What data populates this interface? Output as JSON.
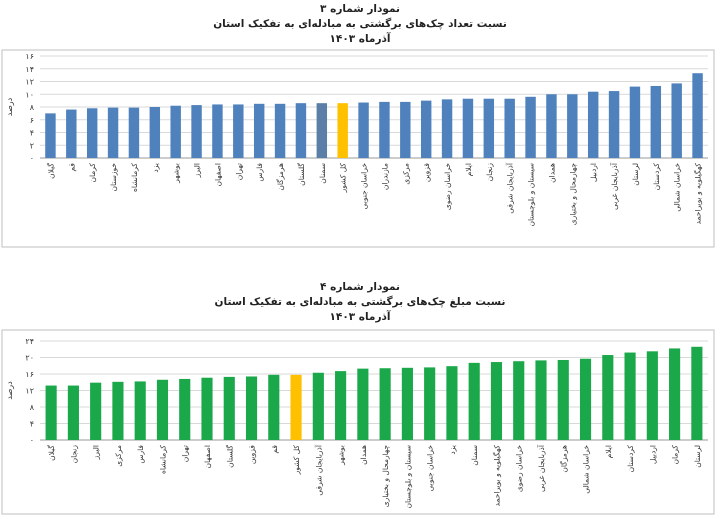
{
  "chart_data": [
    {
      "type": "bar",
      "title": "نمودار شماره ۳",
      "subtitle": "نسبت تعداد چک‌های برگشتی به مبادله‌ای به تفکیک استان",
      "period": "آذرماه ۱۴۰۳",
      "ylabel": "درصد",
      "xlabel": "",
      "ylim": [
        0,
        16
      ],
      "yticks": [
        0,
        2,
        4,
        6,
        8,
        10,
        12,
        14,
        16
      ],
      "ytick_labels": [
        "۰",
        "۲",
        "۴",
        "۶",
        "۸",
        "۱۰",
        "۱۲",
        "۱۴",
        "۱۶"
      ],
      "grid": true,
      "legend": "none",
      "colors": {
        "default": "#4F81BD",
        "national": "#FFC000",
        "highlight": "#5B7FA6"
      },
      "categories": [
        "گیلان",
        "قم",
        "کرمان",
        "خوزستان",
        "کرمانشاه",
        "یزد",
        "بوشهر",
        "البرز",
        "اصفهان",
        "تهران",
        "فارس",
        "هرمزگان",
        "گلستان",
        "سمنان",
        "کل کشور",
        "خراسان جنوبی",
        "مازندران",
        "مرکزی",
        "قزوین",
        "خراسان رضوی",
        "ایلام",
        "زنجان",
        "آذربایجان شرقی",
        "سیستان و بلوچستان",
        "همدان",
        "چهارمحال و بختیاری",
        "اردبیل",
        "آذربایجان غربی",
        "لرستان",
        "کردستان",
        "خراسان شمالی",
        "کهگیلویه و بویراحمد"
      ],
      "values": [
        7.0,
        7.6,
        7.8,
        7.9,
        7.9,
        8.0,
        8.2,
        8.3,
        8.4,
        8.4,
        8.5,
        8.5,
        8.6,
        8.6,
        8.6,
        8.7,
        8.8,
        8.8,
        9.0,
        9.2,
        9.3,
        9.3,
        9.3,
        9.6,
        10.0,
        10.0,
        10.4,
        10.5,
        11.2,
        11.3,
        11.7,
        13.3
      ],
      "bar_colors": [
        "default",
        "default",
        "default",
        "default",
        "default",
        "default",
        "default",
        "default",
        "default",
        "default",
        "default",
        "default",
        "default",
        "highlight",
        "national",
        "default",
        "default",
        "default",
        "default",
        "default",
        "default",
        "default",
        "default",
        "default",
        "default",
        "default",
        "default",
        "default",
        "default",
        "default",
        "default",
        "default"
      ]
    },
    {
      "type": "bar",
      "title": "نمودار شماره ۴",
      "subtitle": "نسبت مبلغ چک‌های برگشتی به مبادله‌ای به تفکیک استان",
      "period": "آذرماه ۱۴۰۳",
      "ylabel": "درصد",
      "xlabel": "",
      "ylim": [
        0,
        24
      ],
      "yticks": [
        0,
        4,
        8,
        12,
        16,
        20,
        24
      ],
      "ytick_labels": [
        "۰",
        "۴",
        "۸",
        "۱۲",
        "۱۶",
        "۲۰",
        "۲۴"
      ],
      "grid": true,
      "legend": "none",
      "colors": {
        "default": "#1BA84A",
        "national": "#FFC000"
      },
      "categories": [
        "گیلان",
        "زنجان",
        "البرز",
        "مرکزی",
        "فارس",
        "کرمانشاه",
        "تهران",
        "اصفهان",
        "گلستان",
        "قزوین",
        "قم",
        "کل کشور",
        "آذربایجان شرقی",
        "بوشهر",
        "همدان",
        "چهارمحال و بختیاری",
        "سیستان و بلوچستان",
        "خراسان جنوبی",
        "یزد",
        "سمنان",
        "کهگیلویه و بویراحمد",
        "خراسان رضوی",
        "آذربایجان غربی",
        "هرمزگان",
        "خراسان شمالی",
        "ایلام",
        "کردستان",
        "اردبیل",
        "کرمان",
        "لرستان"
      ],
      "values": [
        13.2,
        13.2,
        13.9,
        14.1,
        14.2,
        14.6,
        14.8,
        15.1,
        15.3,
        15.4,
        15.8,
        15.8,
        16.3,
        16.7,
        17.3,
        17.4,
        17.5,
        17.6,
        17.9,
        18.7,
        18.9,
        19.1,
        19.3,
        19.4,
        19.7,
        20.6,
        21.2,
        21.5,
        22.2,
        22.6
      ],
      "bar_colors": [
        "default",
        "default",
        "default",
        "default",
        "default",
        "default",
        "default",
        "default",
        "default",
        "default",
        "default",
        "national",
        "default",
        "default",
        "default",
        "default",
        "default",
        "default",
        "default",
        "default",
        "default",
        "default",
        "default",
        "default",
        "default",
        "default",
        "default",
        "default",
        "default",
        "default"
      ]
    }
  ]
}
